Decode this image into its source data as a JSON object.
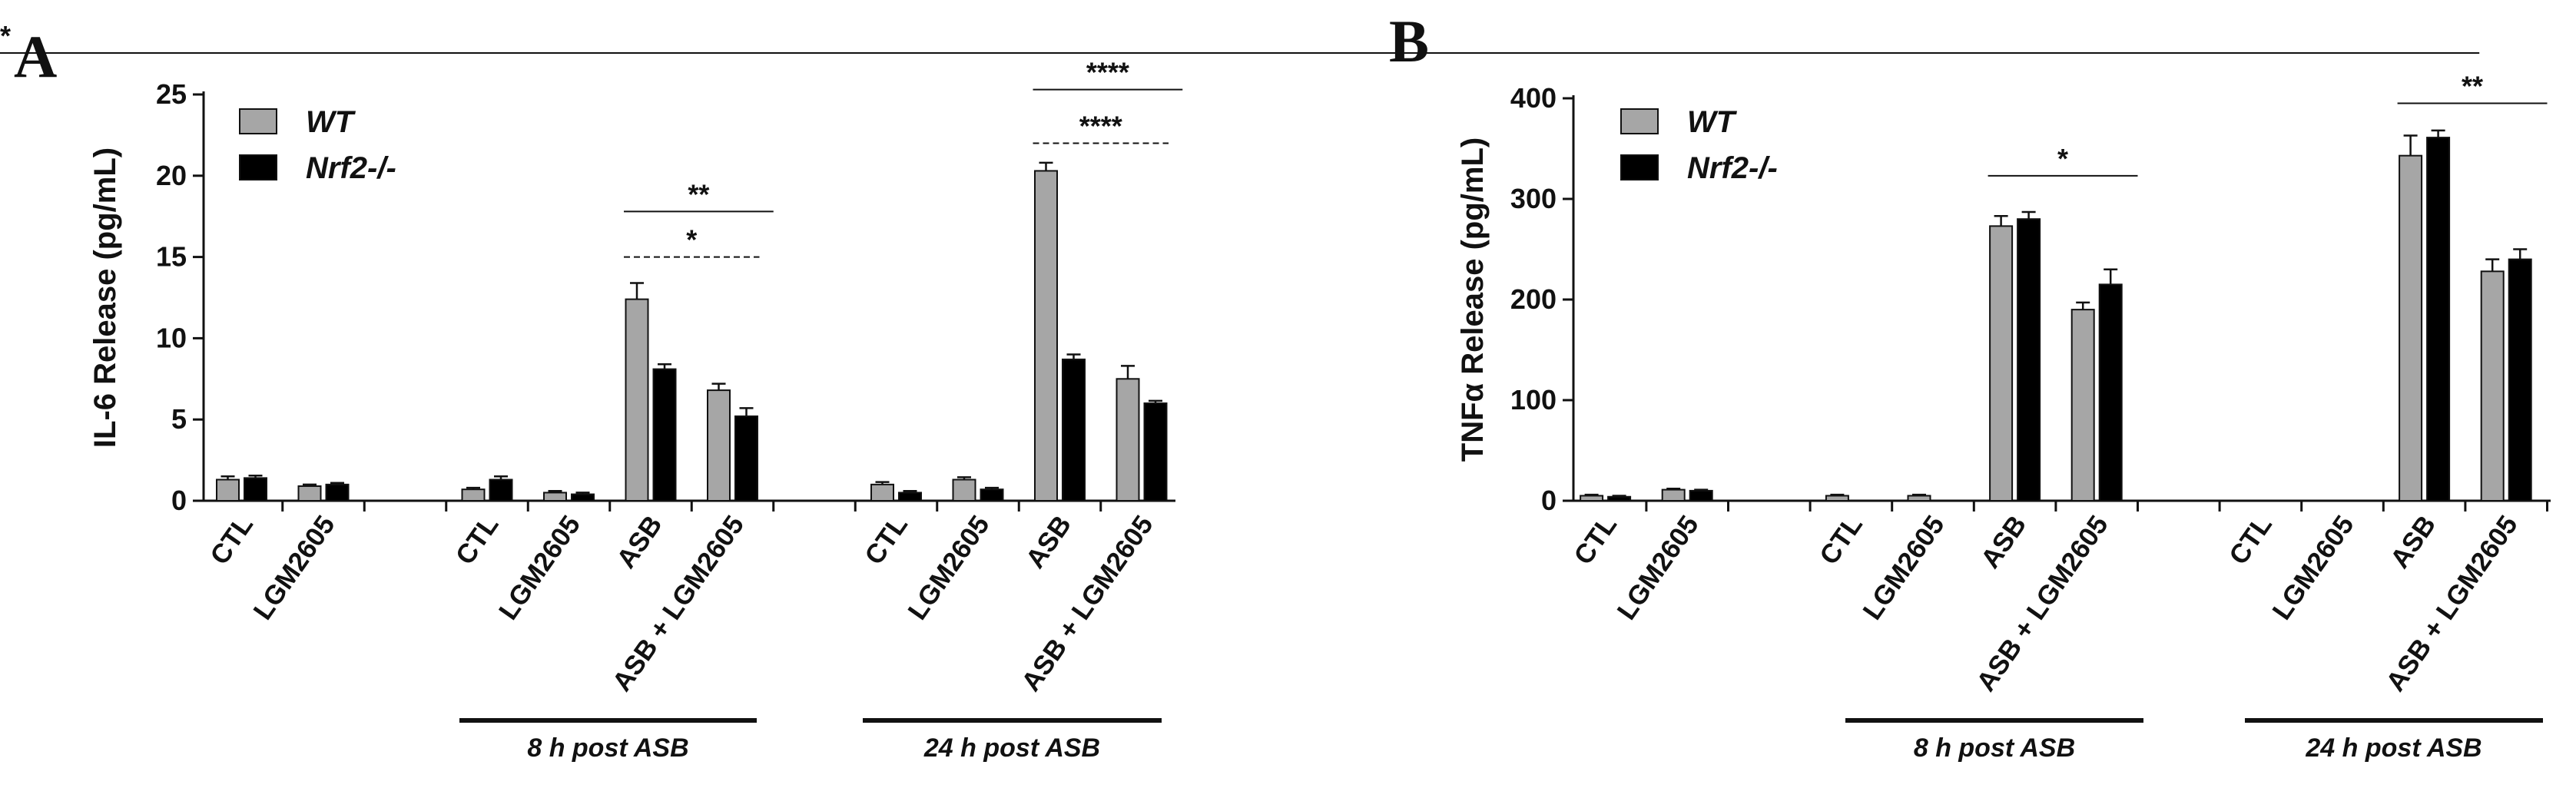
{
  "colors": {
    "wt": "#a6a6a6",
    "ko": "#000000",
    "axis": "#111111"
  },
  "chart_data": [
    {
      "type": "bar",
      "panel": "A",
      "ylabel": "IL-6 Release (pg/mL)",
      "ylim": [
        0,
        25
      ],
      "yticks": [
        "0",
        "5",
        "10",
        "15",
        "20",
        "25"
      ],
      "legend": {
        "position": "top-left",
        "entries": [
          {
            "label": "WT",
            "color": "#a6a6a6"
          },
          {
            "label": "Nrf2-/-",
            "color": "#000000"
          }
        ]
      },
      "groups": [
        {
          "label": "",
          "categories": [
            "CTL",
            "LGM2605"
          ]
        },
        {
          "label": "8 h post ASB",
          "categories": [
            "CTL",
            "LGM2605",
            "ASB",
            "ASB + LGM2605"
          ]
        },
        {
          "label": "24 h post ASB",
          "categories": [
            "CTL",
            "LGM2605",
            "ASB",
            "ASB + LGM2605"
          ]
        }
      ],
      "series": [
        {
          "name": "WT",
          "values": [
            1.3,
            0.9,
            0.7,
            0.5,
            12.4,
            6.8,
            1.0,
            1.3,
            20.3,
            7.5
          ],
          "errors": [
            0.2,
            0.1,
            0.1,
            0.1,
            1.0,
            0.4,
            0.15,
            0.15,
            0.5,
            0.8
          ]
        },
        {
          "name": "Nrf2-/-",
          "values": [
            1.4,
            1.0,
            1.3,
            0.4,
            8.1,
            5.2,
            0.5,
            0.7,
            8.7,
            6.0
          ],
          "errors": [
            0.15,
            0.1,
            0.2,
            0.1,
            0.3,
            0.5,
            0.1,
            0.1,
            0.3,
            0.15
          ]
        }
      ],
      "annotations": [
        {
          "text": "*",
          "from": 4,
          "to": 5,
          "level": 15,
          "dashed": true
        },
        {
          "text": "**",
          "from": 4,
          "to": 5.5,
          "level": 17.8,
          "dashed": false
        },
        {
          "text": "****",
          "from": 8,
          "to": 9,
          "level": 22,
          "dashed": true
        },
        {
          "text": "****",
          "from": 8,
          "to": 9.5,
          "level": 25.3,
          "dashed": false
        }
      ]
    },
    {
      "type": "bar",
      "panel": "B",
      "ylabel": "TNFα Release (pg/mL)",
      "ylim": [
        0,
        400
      ],
      "yticks": [
        "0",
        "100",
        "200",
        "300",
        "400"
      ],
      "legend": {
        "position": "top-left",
        "entries": [
          {
            "label": "WT",
            "color": "#a6a6a6"
          },
          {
            "label": "Nrf2-/-",
            "color": "#000000"
          }
        ]
      },
      "groups": [
        {
          "label": "",
          "categories": [
            "CTL",
            "LGM2605"
          ]
        },
        {
          "label": "8 h post ASB",
          "categories": [
            "CTL",
            "LGM2605",
            "ASB",
            "ASB + LGM2605"
          ]
        },
        {
          "label": "24 h post ASB",
          "categories": [
            "CTL",
            "LGM2605",
            "ASB",
            "ASB + LGM2605"
          ]
        }
      ],
      "series": [
        {
          "name": "WT",
          "values": [
            5,
            11,
            5,
            5,
            273,
            190,
            0,
            0,
            343,
            228
          ],
          "errors": [
            1,
            1,
            1,
            1,
            10,
            7,
            0,
            0,
            20,
            12
          ]
        },
        {
          "name": "Nrf2-/-",
          "values": [
            4,
            10,
            0,
            0,
            280,
            215,
            0,
            0,
            361,
            240
          ],
          "errors": [
            1,
            1,
            0,
            0,
            7,
            15,
            0,
            0,
            7,
            10
          ]
        }
      ],
      "annotations": [
        {
          "text": "*",
          "from": 4,
          "to": 5.5,
          "level": 323,
          "dashed": false
        },
        {
          "text": "**",
          "from": 8,
          "to": 9.5,
          "level": 395,
          "dashed": false
        },
        {
          "text": "**",
          "from": 9,
          "to": 10.5,
          "level": 445,
          "dashed": false
        }
      ]
    }
  ]
}
